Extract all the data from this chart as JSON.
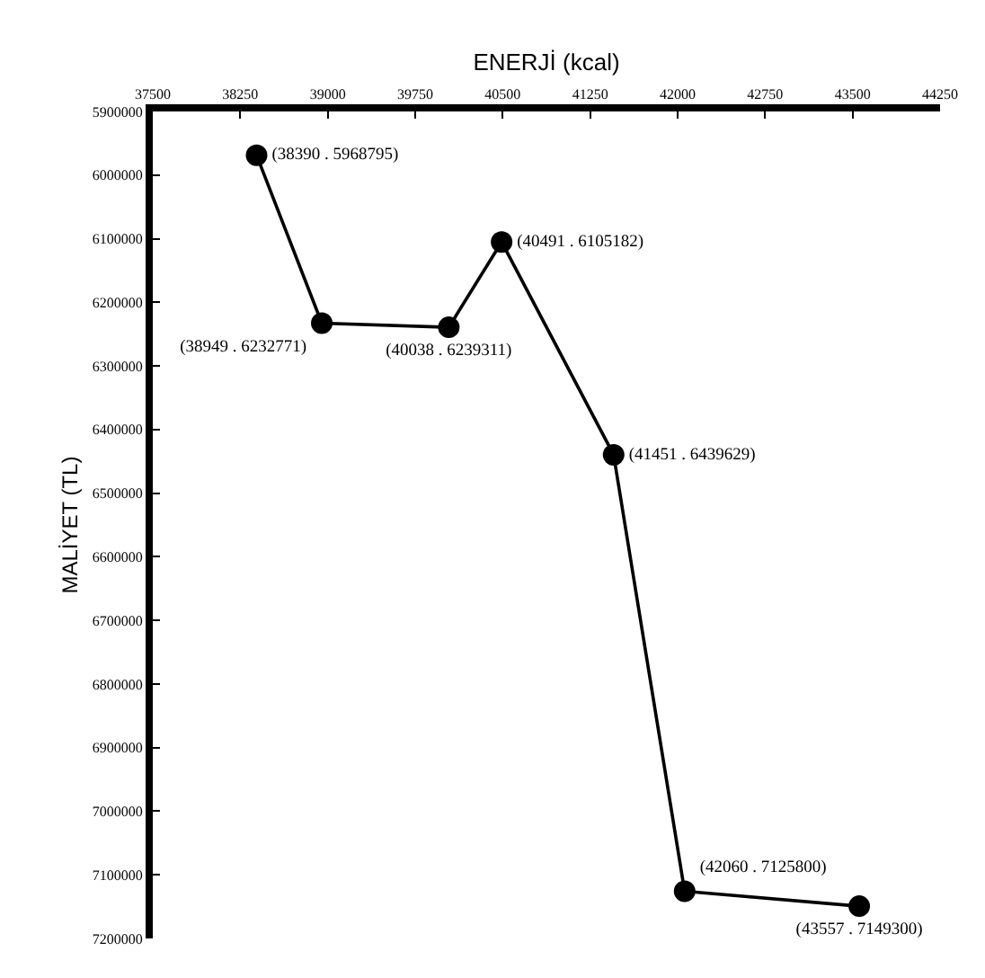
{
  "chart_data": {
    "type": "line",
    "xlabel": "ENERJİ (kcal)",
    "ylabel": "MALİYET (TL)",
    "x": [
      38390,
      38949,
      40038,
      40491,
      41451,
      42060,
      43557
    ],
    "series": [
      {
        "color": "#000000",
        "values": [
          5968795,
          6232771,
          6239311,
          6105182,
          6439629,
          7125800,
          7149300
        ],
        "value_labels": [
          "(38390 . 5968795)",
          "(38949 . 6232771)",
          "(40038 . 6239311)",
          "(40491 . 6105182)",
          "(41451 . 6439629)",
          "(42060 . 7125800)",
          "(43557 . 7149300)"
        ]
      }
    ],
    "xlim": [
      37500,
      44250
    ],
    "xticks": [
      37500,
      38250,
      39000,
      39750,
      40500,
      41250,
      42000,
      42750,
      43500,
      44250
    ],
    "ylim": [
      7200000,
      5900000
    ],
    "yticks": [
      5900000,
      6000000,
      6100000,
      6200000,
      6300000,
      6400000,
      6500000,
      6600000,
      6700000,
      6800000,
      6900000,
      7000000,
      7100000,
      7200000
    ],
    "marker": "circle",
    "line_style": "solid"
  }
}
